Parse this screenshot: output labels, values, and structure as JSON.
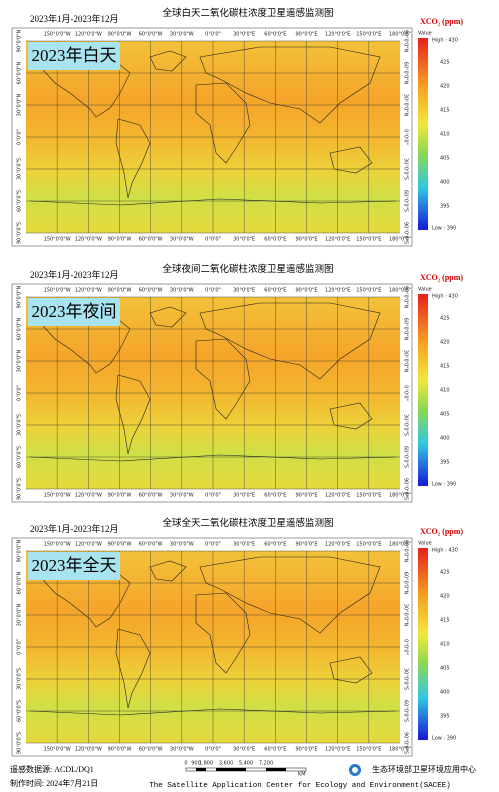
{
  "panels": [
    {
      "date_range": "2023年1月-2023年12月",
      "title": "全球白天二氧化碳柱浓度卫星遥感监测图",
      "badge": "2023年白天"
    },
    {
      "date_range": "2023年1月-2023年12月",
      "title": "全球夜间二氧化碳柱浓度卫星遥感监测图",
      "badge": "2023年夜间"
    },
    {
      "date_range": "2023年1月-2023年12月",
      "title": "全球全天二氧化碳柱浓度卫星遥感监测图",
      "badge": "2023年全天"
    }
  ],
  "legend": {
    "title": "XCO₂ (ppm)",
    "value_label": "Value",
    "high": "High : 430",
    "ticks": [
      "425",
      "420",
      "415",
      "410",
      "405",
      "400",
      "395"
    ],
    "low": "Low : 390"
  },
  "longitudes": [
    "150°0'0\"W",
    "120°0'0\"W",
    "90°0'0\"W",
    "60°0'0\"W",
    "30°0'0\"W",
    "0°0'0\"",
    "30°0'0\"E",
    "60°0'0\"E",
    "90°0'0\"E",
    "120°0'0\"E",
    "150°0'0\"E",
    "180°0'0\""
  ],
  "latitudes": [
    "90°0'0\"N",
    "60°0'0\"N",
    "30°0'0\"N",
    "0°0'0\"",
    "30°0'0\"S",
    "60°0'0\"S",
    "90°0'0\"S"
  ],
  "footer": {
    "data_source": "遥感数据源: ACDL/DQ1",
    "made_date": "制作时间: 2024年7月21日",
    "scale_labels": [
      "0",
      "900",
      "1,800",
      "3,600",
      "5,400",
      "7,200"
    ],
    "scale_unit": "KM",
    "org_cn": "生态环境部卫星环境应用中心",
    "org_en": "The Satellite Application Center for Ecology and Environment(SACEE)"
  }
}
